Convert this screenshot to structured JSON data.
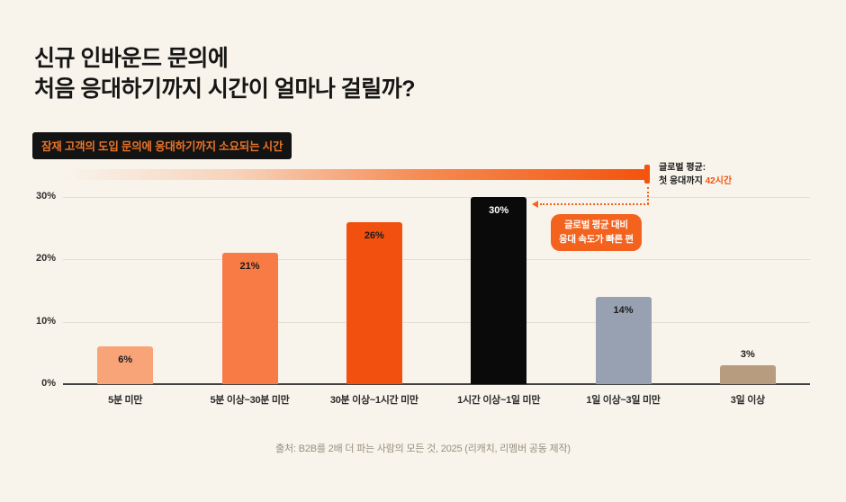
{
  "page": {
    "title_line1": "신규 인바운드 문의에",
    "title_line2": "처음 응대하기까지 시간이 얼마나 걸릴까?",
    "badge_label": "잠재 고객의 도입 문의에 응대하기까지 소요되는 시간",
    "source": "출처: B2B를 2배 더 파는 사람의 모든 것, 2025 (리캐치, 리멤버 공동 제작)"
  },
  "annotations": {
    "global_avg": {
      "line1": "글로벌 평균:",
      "line2_prefix": "첫 응대까지 ",
      "line2_value": "42시간"
    },
    "callout": {
      "line1": "글로벌 평균 대비",
      "line2": "응대 속도가 빠른 편"
    }
  },
  "colors": {
    "background": "#F8F4EB",
    "accent_orange": "#F4631E",
    "deep_orange": "#F3540E",
    "badge_bg": "#131313",
    "badge_text": "#E8742A",
    "grid": "#E4DFD3",
    "axis": "#414141"
  },
  "chart_data": {
    "type": "bar",
    "title": "잠재 고객의 도입 문의에 응대하기까지 소요되는 시간",
    "categories": [
      "5분 미만",
      "5분 이상~30분 미만",
      "30분 이상~1시간 미만",
      "1시간 이상~1일 미만",
      "1일 이상~3일 미만",
      "3일 이상"
    ],
    "values": [
      6,
      21,
      26,
      30,
      14,
      3
    ],
    "value_labels": [
      "6%",
      "21%",
      "26%",
      "30%",
      "14%",
      "3%"
    ],
    "bar_colors": [
      "#F9A478",
      "#F87B45",
      "#F1500E",
      "#0A0A0A",
      "#98A1B1",
      "#B79C80"
    ],
    "value_label_colors": [
      "#1B1B1B",
      "#1B1B1B",
      "#1B1B1B",
      "#FFFFFF",
      "#1B1B1B",
      "#1B1B1B"
    ],
    "xlabel": "",
    "ylabel": "",
    "ylim": [
      0,
      30
    ],
    "yticks": [
      {
        "label": "0%",
        "value": 0
      },
      {
        "label": "10%",
        "value": 10
      },
      {
        "label": "20%",
        "value": 20
      },
      {
        "label": "30%",
        "value": 30
      }
    ],
    "grid": true,
    "legend": false
  }
}
